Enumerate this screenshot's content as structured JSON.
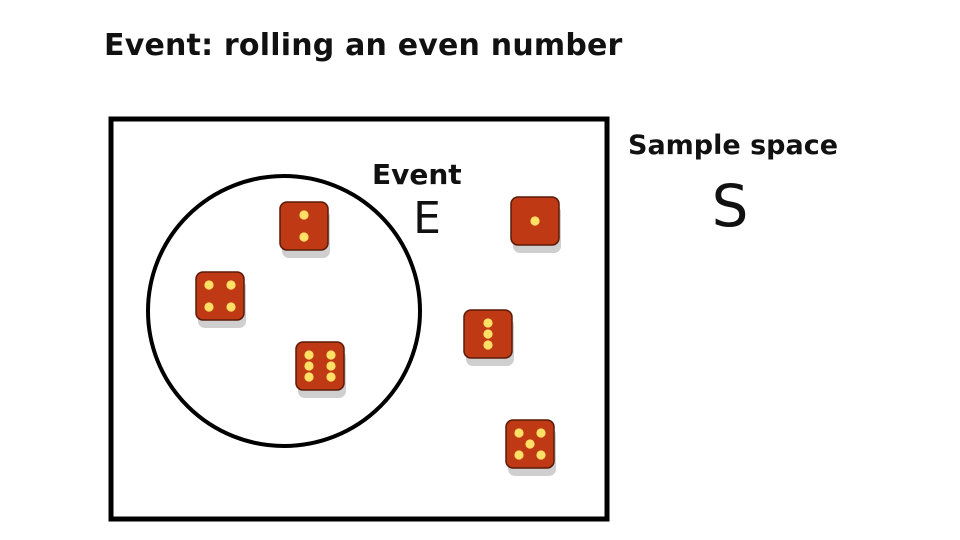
{
  "title": "Event: rolling an even number",
  "sample_space": {
    "label": "Sample space",
    "symbol": "S"
  },
  "event": {
    "label": "Event",
    "symbol": "E"
  },
  "dice": {
    "color": "#bf3a14",
    "pip_color": "#ffe066",
    "inside_event": [
      2,
      4,
      6
    ],
    "outside_event": [
      1,
      3,
      5
    ]
  }
}
